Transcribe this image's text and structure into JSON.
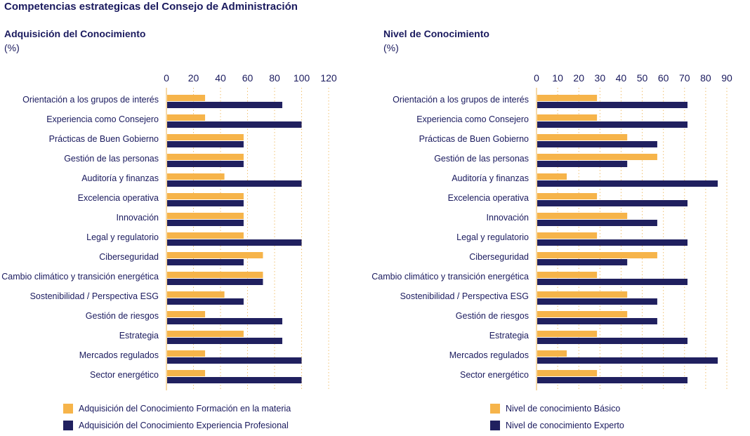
{
  "title": "Competencias estrategicas del Consejo de Administración",
  "colors": {
    "orange": "#f6b44a",
    "navy": "#20205f",
    "grid": "#f0c070",
    "text": "#1a1a5e"
  },
  "chart_data": [
    {
      "type": "bar",
      "orientation": "horizontal",
      "title": "Adquisición del Conocimiento",
      "unit": "(%)",
      "xlim": [
        0,
        120
      ],
      "ticks": [
        0,
        20,
        40,
        60,
        80,
        100,
        120
      ],
      "categories": [
        "Orientación a los grupos de interés",
        "Experiencia como Consejero",
        "Prácticas de Buen Gobierno",
        "Gestión de las personas",
        "Auditoría y finanzas",
        "Excelencia operativa",
        "Innovación",
        "Legal y regulatorio",
        "Ciberseguridad",
        "Cambio climático y transición energética",
        "Sostenibilidad / Perspectiva ESG",
        "Gestión de riesgos",
        "Estrategia",
        "Mercados regulados",
        "Sector energético"
      ],
      "series": [
        {
          "name": "Adquisición del Conocimiento Formación en la materia",
          "color": "#f6b44a",
          "values": [
            28.6,
            28.6,
            57.1,
            57.1,
            42.9,
            57.1,
            57.1,
            57.1,
            71.4,
            71.4,
            42.9,
            28.6,
            57.1,
            28.6,
            28.6
          ]
        },
        {
          "name": "Adquisición del Conocimiento Experiencia Profesional",
          "color": "#20205f",
          "values": [
            85.7,
            100,
            57.1,
            57.1,
            100,
            57.1,
            57.1,
            100,
            57.1,
            71.4,
            57.1,
            85.7,
            85.7,
            100,
            100
          ]
        }
      ]
    },
    {
      "type": "bar",
      "orientation": "horizontal",
      "title": "Nivel de Conocimiento",
      "unit": "(%)",
      "xlim": [
        0,
        90
      ],
      "ticks": [
        0,
        10,
        20,
        30,
        40,
        50,
        60,
        70,
        80,
        90
      ],
      "categories": [
        "Orientación a los grupos de interés",
        "Experiencia como Consejero",
        "Prácticas de Buen Gobierno",
        "Gestión de las personas",
        "Auditoría y finanzas",
        "Excelencia operativa",
        "Innovación",
        "Legal y regulatorio",
        "Ciberseguridad",
        "Cambio climático y transición energética",
        "Sostenibilidad / Perspectiva ESG",
        "Gestión de riesgos",
        "Estrategia",
        "Mercados regulados",
        "Sector energético"
      ],
      "series": [
        {
          "name": "Nivel de conocimiento Básico",
          "color": "#f6b44a",
          "values": [
            28.6,
            28.6,
            42.9,
            57.1,
            14.3,
            28.6,
            42.9,
            28.6,
            57.1,
            28.6,
            42.9,
            42.9,
            28.6,
            14.3,
            28.6
          ]
        },
        {
          "name": "Nivel de conocimiento Experto",
          "color": "#20205f",
          "values": [
            71.4,
            71.4,
            57.1,
            42.9,
            85.7,
            71.4,
            57.1,
            71.4,
            42.9,
            71.4,
            57.1,
            57.1,
            71.4,
            85.7,
            71.4
          ]
        }
      ]
    }
  ]
}
